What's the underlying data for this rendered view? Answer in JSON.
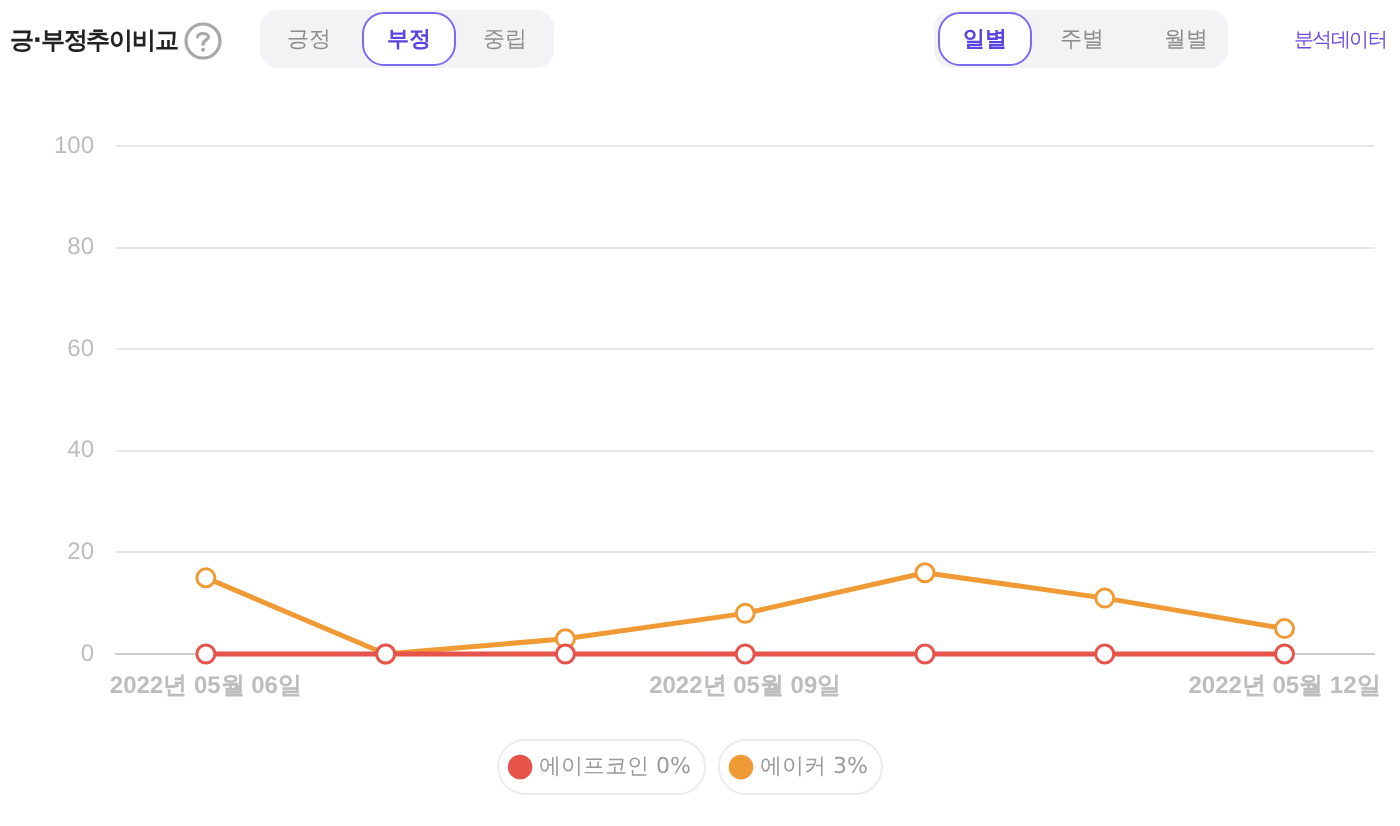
{
  "chart_data": {
    "type": "line",
    "title": "긍·부정추이비교",
    "categories": [
      "2022년 05월 06일",
      null,
      null,
      "2022년 05월 09일",
      null,
      null,
      "2022년 05월 12일"
    ],
    "series": [
      {
        "name": "에이프코인 0%",
        "color": "#e5534b",
        "values": [
          0,
          0,
          0,
          0,
          0,
          0,
          0
        ]
      },
      {
        "name": "에이커 3%",
        "color": "#f09a36",
        "values": [
          15,
          0,
          3,
          8,
          16,
          11,
          5
        ]
      }
    ],
    "ylim": [
      0,
      100
    ],
    "yticks": [
      0,
      20,
      40,
      60,
      80,
      100
    ],
    "grid": "y",
    "legend": "bottom",
    "marker": "circle",
    "annotations": [
      "긍정",
      "부정",
      "중립",
      "일별",
      "주별",
      "월별",
      "분석데이터"
    ]
  }
}
